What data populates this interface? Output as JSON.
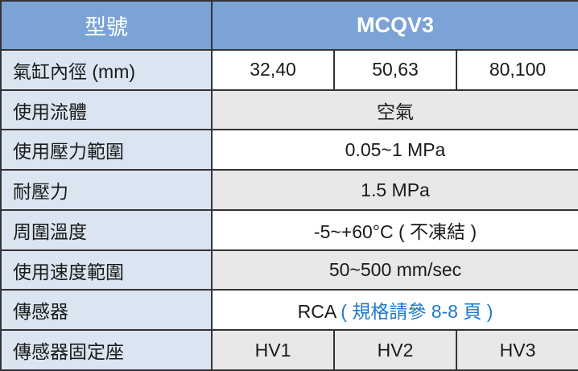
{
  "header": {
    "label": "型號",
    "model": "MCQV3"
  },
  "rows": [
    {
      "label": "氣缸內徑 (mm)",
      "values": [
        "32,40",
        "50,63",
        "80,100"
      ]
    },
    {
      "label": "使用流體",
      "value": "空氣"
    },
    {
      "label": "使用壓力範圍",
      "value": "0.05~1 MPa"
    },
    {
      "label": "耐壓力",
      "value": "1.5 MPa"
    },
    {
      "label": "周圍溫度",
      "value": "-5~+60°C ( 不凍結 )"
    },
    {
      "label": "使用速度範圍",
      "value": "50~500 mm/sec"
    },
    {
      "label": "傳感器",
      "value": "RCA",
      "note": " ( 規格請參 8-8 頁 )"
    },
    {
      "label": "傳感器固定座",
      "values": [
        "HV1",
        "HV2",
        "HV3"
      ]
    }
  ],
  "colors": {
    "header": "#7ba3d6",
    "label_bg": "#dbe5f2",
    "gray_bg": "#e8e8ea",
    "link": "#1f78c8"
  }
}
